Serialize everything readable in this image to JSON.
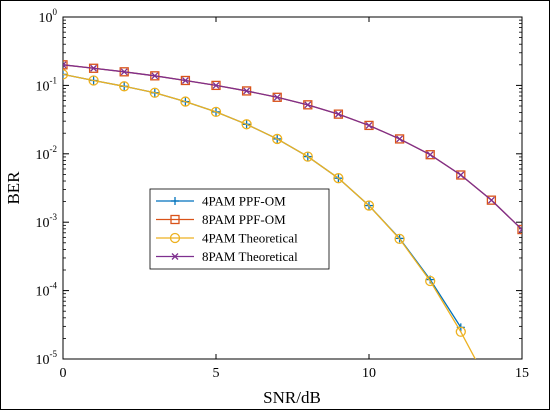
{
  "chart_data": {
    "type": "line",
    "title": "",
    "xlabel": "SNR/dB",
    "ylabel": "BER",
    "xlim": [
      0,
      15
    ],
    "ylim": [
      1e-05,
      1
    ],
    "yscale": "log",
    "grid": false,
    "legend_position": "center-left",
    "x_ticks": [
      0,
      5,
      10,
      15
    ],
    "y_ticks": [
      {
        "base": "10",
        "exp": "0",
        "value": 1
      },
      {
        "base": "10",
        "exp": "-1",
        "value": 0.1
      },
      {
        "base": "10",
        "exp": "-2",
        "value": 0.01
      },
      {
        "base": "10",
        "exp": "-3",
        "value": 0.001
      },
      {
        "base": "10",
        "exp": "-4",
        "value": 0.0001
      },
      {
        "base": "10",
        "exp": "-5",
        "value": 1e-05
      }
    ],
    "series": [
      {
        "name": "4PAM PPF-OM",
        "color": "#0072BD",
        "marker": "plus",
        "x": [
          0,
          1,
          2,
          3,
          4,
          5,
          6,
          7,
          8,
          9,
          10,
          11,
          12,
          13
        ],
        "y": [
          0.145,
          0.118,
          0.097,
          0.078,
          0.058,
          0.041,
          0.027,
          0.0165,
          0.0091,
          0.0044,
          0.00175,
          0.00058,
          0.000145,
          2.9e-05
        ]
      },
      {
        "name": "8PAM PPF-OM",
        "color": "#D95319",
        "marker": "square",
        "x": [
          0,
          1,
          2,
          3,
          4,
          5,
          6,
          7,
          8,
          9,
          10,
          11,
          12,
          13,
          14,
          15
        ],
        "y": [
          0.2,
          0.178,
          0.158,
          0.138,
          0.118,
          0.1,
          0.083,
          0.067,
          0.052,
          0.038,
          0.026,
          0.0165,
          0.0097,
          0.0049,
          0.0021,
          0.00078
        ]
      },
      {
        "name": "4PAM Theoretical",
        "color": "#EDB120",
        "marker": "circle",
        "x": [
          0,
          1,
          2,
          3,
          4,
          5,
          6,
          7,
          8,
          9,
          10,
          11,
          12,
          13,
          13.5
        ],
        "y": [
          0.145,
          0.118,
          0.097,
          0.078,
          0.058,
          0.041,
          0.027,
          0.0165,
          0.0091,
          0.0044,
          0.00175,
          0.00057,
          0.000138,
          2.5e-05,
          9.5e-06
        ],
        "marker_count": 14
      },
      {
        "name": "8PAM Theoretical",
        "color": "#7E2F8E",
        "marker": "x",
        "x": [
          0,
          1,
          2,
          3,
          4,
          5,
          6,
          7,
          8,
          9,
          10,
          11,
          12,
          13,
          14,
          15
        ],
        "y": [
          0.2,
          0.178,
          0.158,
          0.138,
          0.118,
          0.1,
          0.083,
          0.067,
          0.052,
          0.038,
          0.026,
          0.0165,
          0.0097,
          0.0049,
          0.0021,
          0.00078
        ]
      }
    ]
  }
}
